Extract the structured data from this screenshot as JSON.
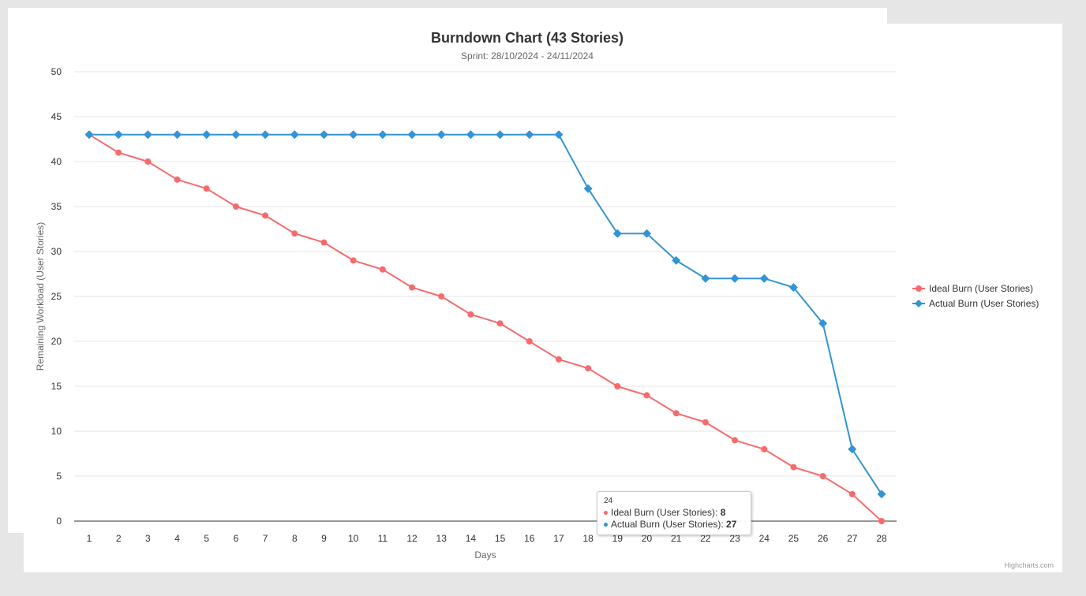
{
  "colors": {
    "ideal": "#f76a6c",
    "actual": "#3294d4",
    "grid": "#e6e6e6",
    "axis_text": "#333333",
    "title": "#333333",
    "subtitle": "#666666"
  },
  "chart_data": {
    "type": "line",
    "title": "Burndown Chart (43 Stories)",
    "subtitle": "Sprint: 28/10/2024 - 24/11/2024",
    "xlabel": "Days",
    "ylabel": "Remaining Workload (User Stories)",
    "ylim": [
      0,
      50
    ],
    "yticks": [
      0,
      5,
      10,
      15,
      20,
      25,
      30,
      35,
      40,
      45,
      50
    ],
    "categories": [
      "1",
      "2",
      "3",
      "4",
      "5",
      "6",
      "7",
      "8",
      "9",
      "10",
      "11",
      "12",
      "13",
      "14",
      "15",
      "16",
      "17",
      "18",
      "19",
      "20",
      "21",
      "22",
      "23",
      "24",
      "25",
      "26",
      "27",
      "28"
    ],
    "grid": true,
    "legend_position": "right",
    "series": [
      {
        "name": "Ideal Burn (User Stories)",
        "marker": "circle",
        "values": [
          43,
          41,
          40,
          38,
          37,
          35,
          34,
          32,
          31,
          29,
          28,
          26,
          25,
          23,
          22,
          20,
          18,
          17,
          15,
          14,
          12,
          11,
          9,
          8,
          6,
          5,
          3,
          0
        ]
      },
      {
        "name": "Actual Burn (User Stories)",
        "marker": "diamond",
        "values": [
          43,
          43,
          43,
          43,
          43,
          43,
          43,
          43,
          43,
          43,
          43,
          43,
          43,
          43,
          43,
          43,
          43,
          37,
          32,
          32,
          29,
          27,
          27,
          27,
          26,
          22,
          8,
          3
        ]
      }
    ]
  },
  "tooltip": {
    "header": "24",
    "rows": [
      {
        "label": "Ideal Burn (User Stories): ",
        "value": "8"
      },
      {
        "label": "Actual Burn (User Stories): ",
        "value": "27"
      }
    ]
  },
  "credits": "Highcharts.com"
}
